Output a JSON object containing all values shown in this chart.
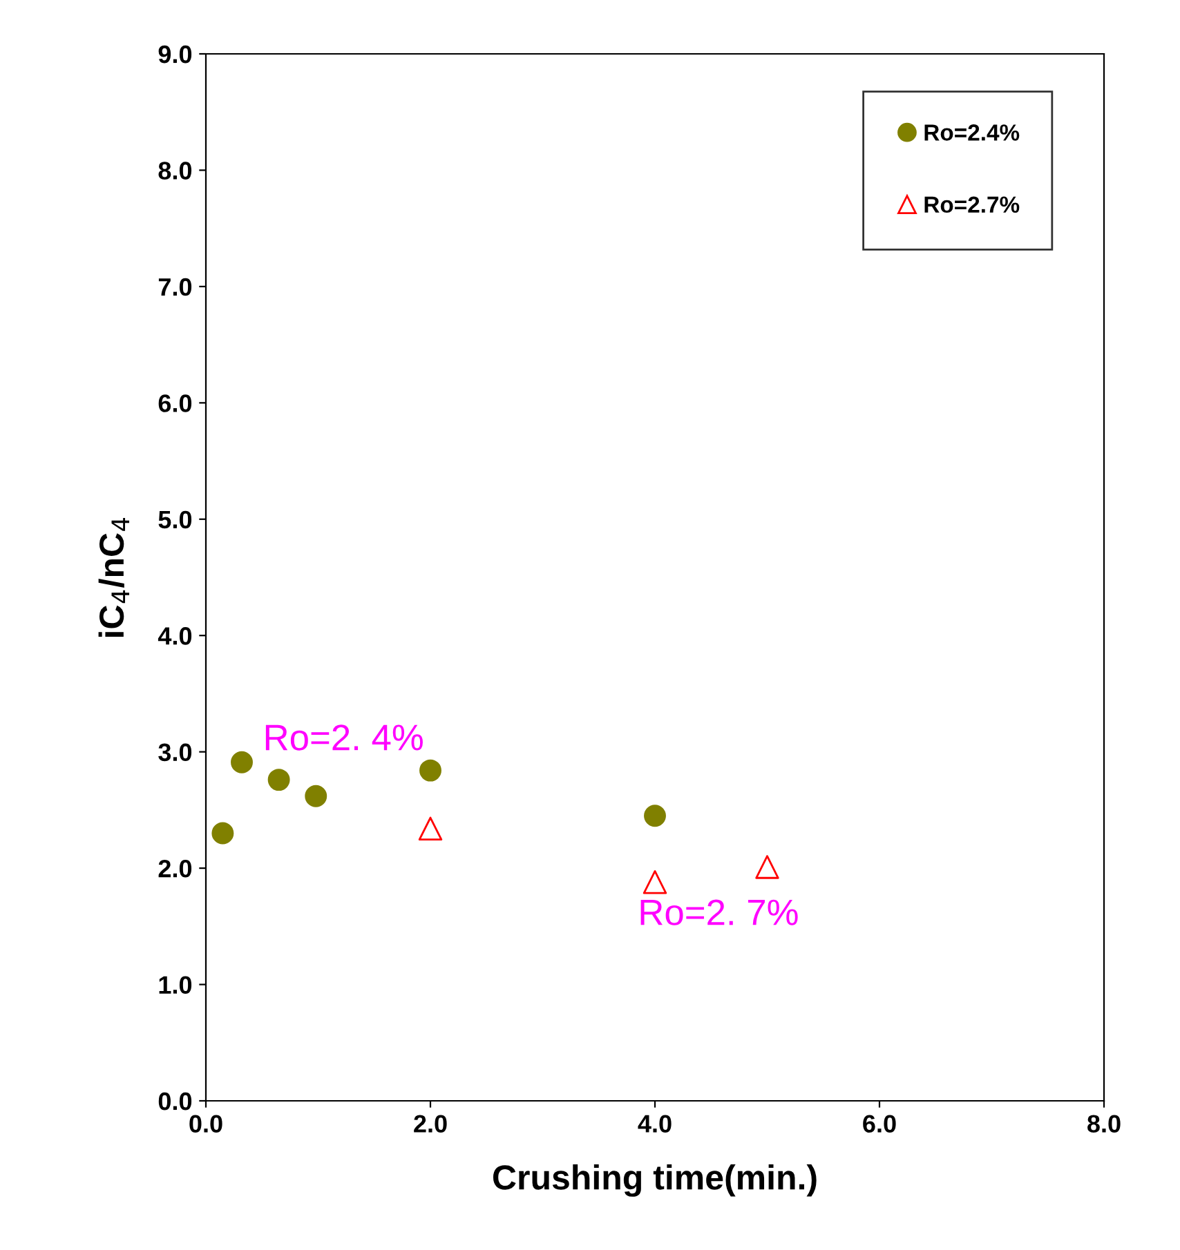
{
  "chart_data": {
    "type": "scatter",
    "xlabel": "Crushing time(min.)",
    "ylabel": "iC$_{4}$/nC$_{4}$",
    "xlim": [
      0,
      8
    ],
    "ylim": [
      0,
      9
    ],
    "xticks": [
      {
        "value": 0,
        "label": "0.0"
      },
      {
        "value": 2,
        "label": "2.0"
      },
      {
        "value": 4,
        "label": "4.0"
      },
      {
        "value": 6,
        "label": "6.0"
      },
      {
        "value": 8,
        "label": "8.0"
      }
    ],
    "yticks": [
      {
        "value": 0,
        "label": "0.0"
      },
      {
        "value": 1,
        "label": "1.0"
      },
      {
        "value": 2,
        "label": "2.0"
      },
      {
        "value": 3,
        "label": "3.0"
      },
      {
        "value": 4,
        "label": "4.0"
      },
      {
        "value": 5,
        "label": "5.0"
      },
      {
        "value": 6,
        "label": "6.0"
      },
      {
        "value": 7,
        "label": "7.0"
      },
      {
        "value": 8,
        "label": "8.0"
      },
      {
        "value": 9,
        "label": "9.0"
      }
    ],
    "grid": false,
    "legend": "top right",
    "series": [
      {
        "name": "Ro=2.4%",
        "color": "#808000",
        "marker": "circle",
        "x": [
          0.15,
          0.32,
          0.65,
          0.98,
          2.0,
          4.0
        ],
        "values": [
          2.3,
          2.91,
          2.76,
          2.62,
          2.84,
          2.45
        ]
      },
      {
        "name": "Ro=2.7%",
        "color": "#ff0000",
        "marker": "triangle",
        "x": [
          2.0,
          4.0,
          5.0
        ],
        "values": [
          2.34,
          1.88,
          2.01
        ]
      }
    ],
    "annotations": [
      "Ro=2. 4%",
      "Ro=2. 7%"
    ]
  }
}
